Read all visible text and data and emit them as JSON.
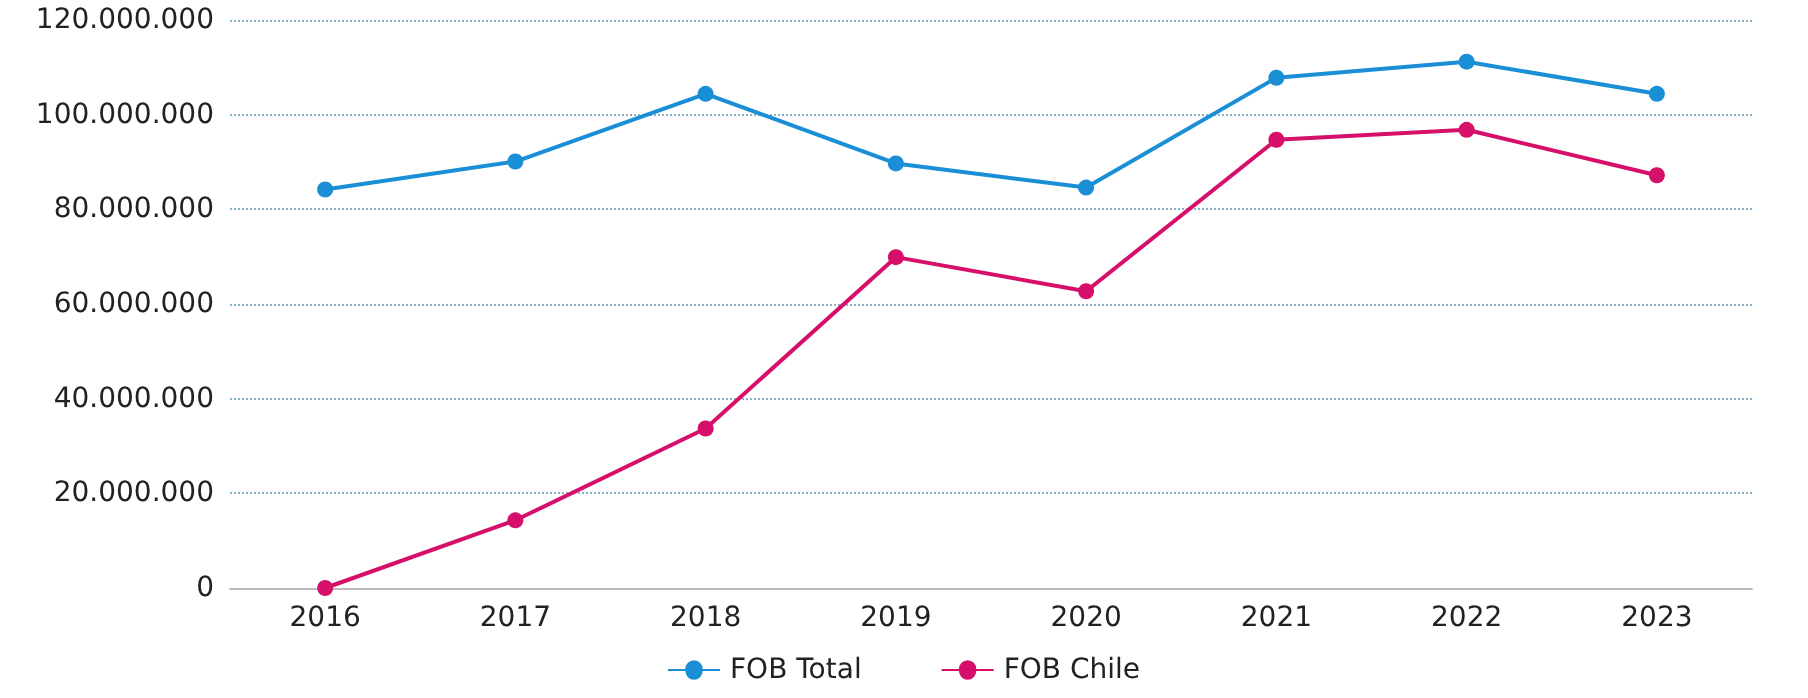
{
  "chart_data": {
    "type": "line",
    "categories": [
      "2016",
      "2017",
      "2018",
      "2019",
      "2020",
      "2021",
      "2022",
      "2023"
    ],
    "series": [
      {
        "name": "FOB Total",
        "color": "#1a8fd6",
        "values": [
          84200000,
          90100000,
          104400000,
          89700000,
          84600000,
          107800000,
          111200000,
          104400000
        ]
      },
      {
        "name": "FOB Chile",
        "color": "#d6106a",
        "values": [
          0,
          14300000,
          33700000,
          69900000,
          62700000,
          94700000,
          96800000,
          87200000
        ]
      }
    ],
    "ylim": [
      0,
      120000000
    ],
    "yticks": [
      {
        "value": 0,
        "label": "0"
      },
      {
        "value": 20000000,
        "label": "20.000.000"
      },
      {
        "value": 40000000,
        "label": "40.000.000"
      },
      {
        "value": 60000000,
        "label": "60.000.000"
      },
      {
        "value": 80000000,
        "label": "80.000.000"
      },
      {
        "value": 100000000,
        "label": "100.000.000"
      },
      {
        "value": 120000000,
        "label": "120.000.000"
      }
    ],
    "grid": "y",
    "legend": "bottom",
    "marker": "circle",
    "line_style": "solid"
  }
}
